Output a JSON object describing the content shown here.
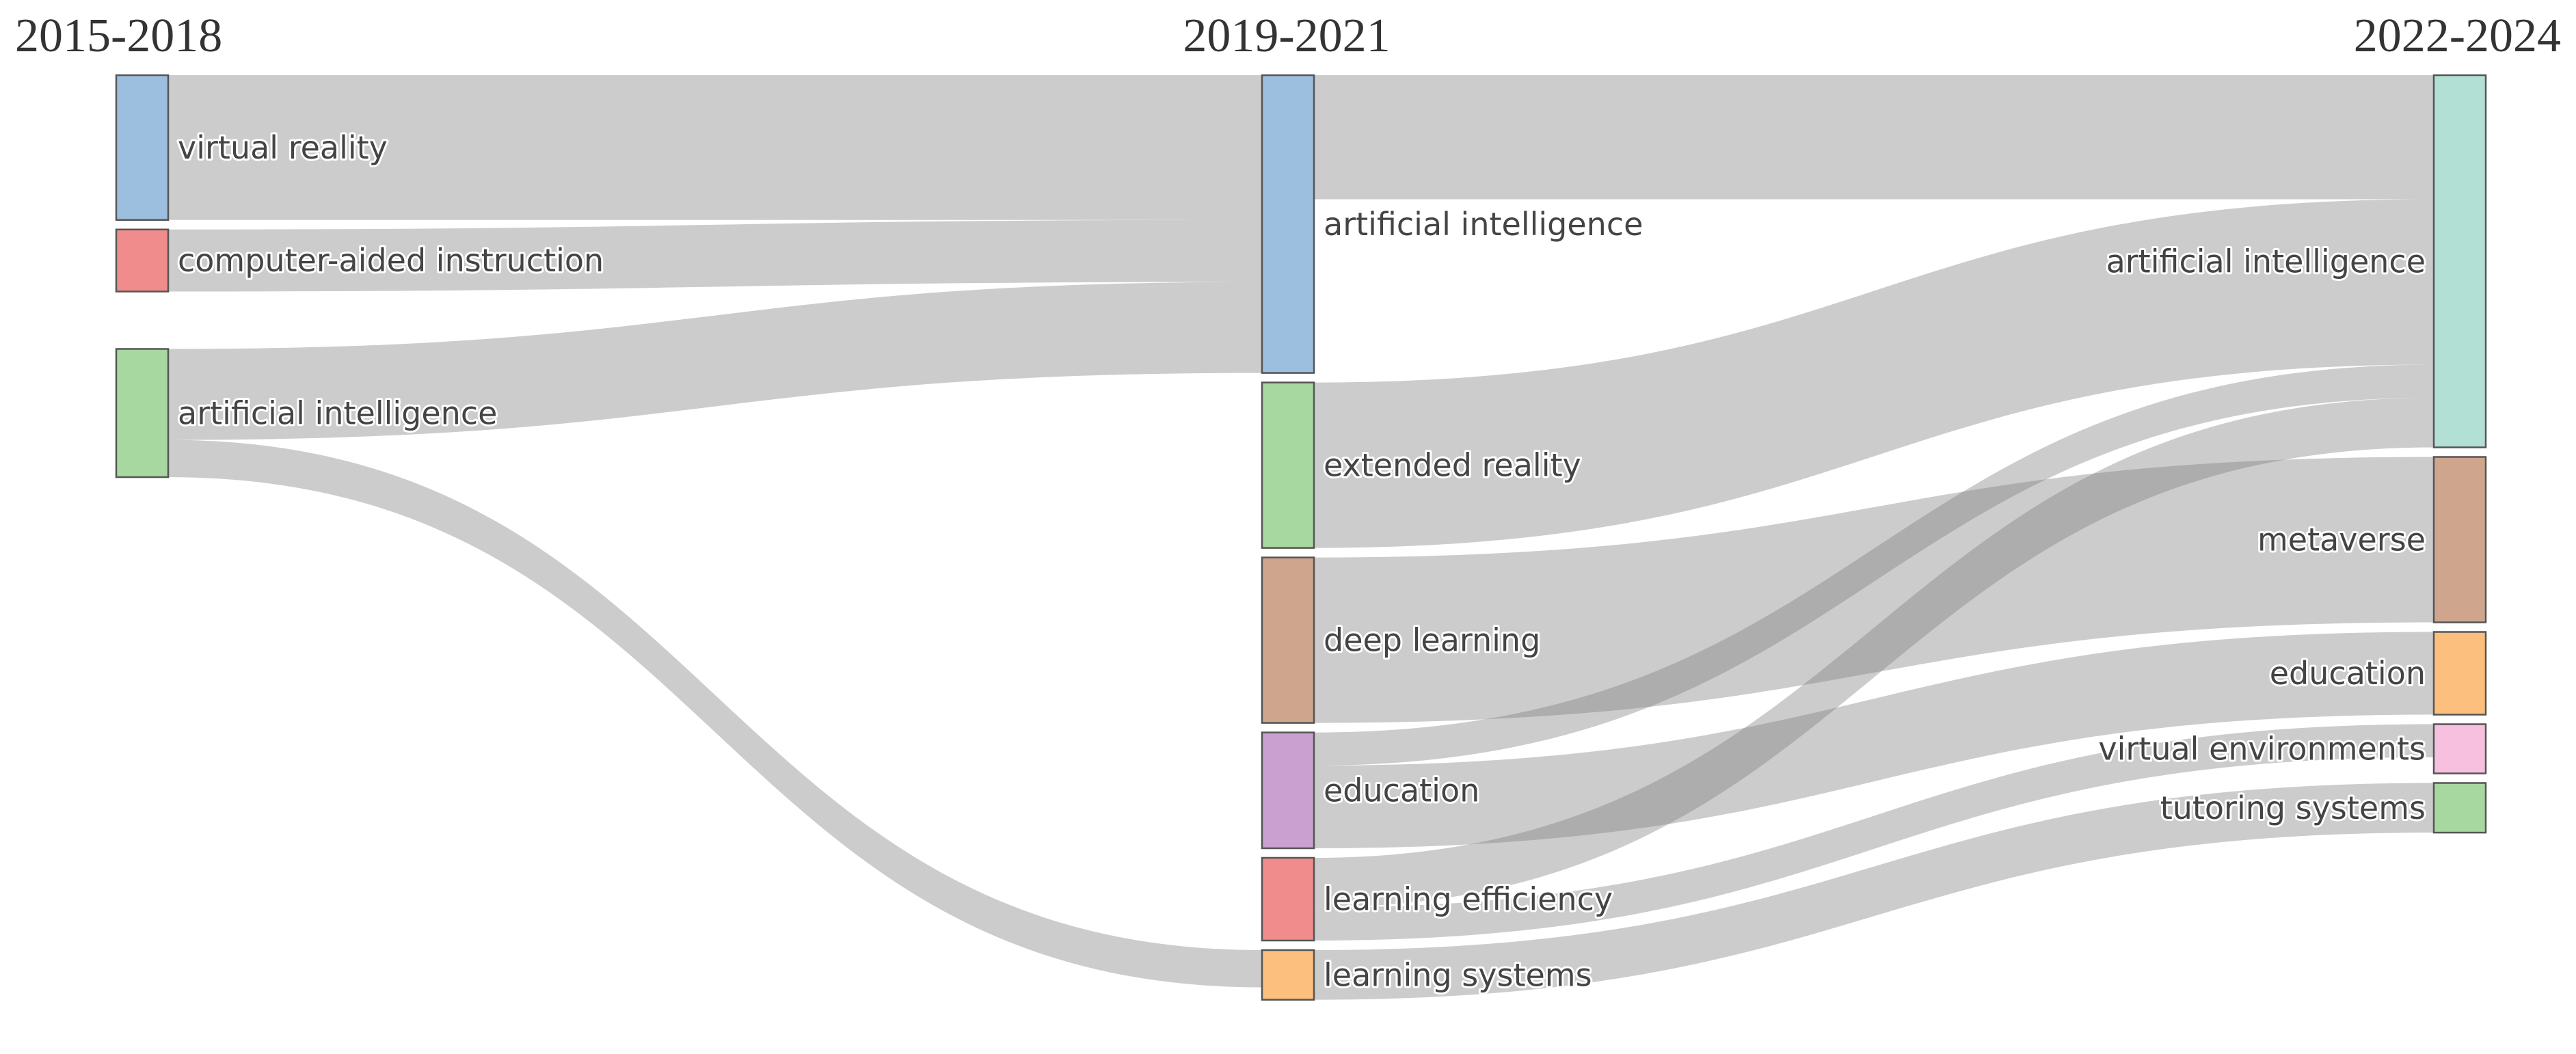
{
  "chart_data": {
    "type": "sankey",
    "columns": [
      "2015-2018",
      "2019-2021",
      "2022-2024"
    ],
    "nodes": [
      {
        "id": "a1",
        "column": 0,
        "label": "virtual reality",
        "color": "#9dbfdf"
      },
      {
        "id": "a2",
        "column": 0,
        "label": "computer-aided instruction",
        "color": "#f08c8c"
      },
      {
        "id": "a3",
        "column": 0,
        "label": "artificial intelligence",
        "color": "#a6d8a0"
      },
      {
        "id": "b1",
        "column": 1,
        "label": "artificial intelligence",
        "color": "#9dbfdf"
      },
      {
        "id": "b2",
        "column": 1,
        "label": "extended reality",
        "color": "#a6d8a0"
      },
      {
        "id": "b3",
        "column": 1,
        "label": "deep learning",
        "color": "#cfa58e"
      },
      {
        "id": "b4",
        "column": 1,
        "label": "education",
        "color": "#c9a0d0"
      },
      {
        "id": "b5",
        "column": 1,
        "label": "learning efficiency",
        "color": "#f08c8c"
      },
      {
        "id": "b6",
        "column": 1,
        "label": "learning systems",
        "color": "#fcbf7d"
      },
      {
        "id": "c1",
        "column": 2,
        "label": "artificial intelligence",
        "color": "#b2e0d4"
      },
      {
        "id": "c2",
        "column": 2,
        "label": "metaverse",
        "color": "#cfa58e"
      },
      {
        "id": "c3",
        "column": 2,
        "label": "education",
        "color": "#fcbf7d"
      },
      {
        "id": "c4",
        "column": 2,
        "label": "virtual environments",
        "color": "#f7c0df"
      },
      {
        "id": "c5",
        "column": 2,
        "label": "tutoring systems",
        "color": "#a6d8a0"
      }
    ],
    "links": [
      {
        "source": "a1",
        "target": "b1",
        "value": 35
      },
      {
        "source": "a2",
        "target": "b1",
        "value": 15
      },
      {
        "source": "a3",
        "target": "b1",
        "value": 22
      },
      {
        "source": "a3",
        "target": "b6",
        "value": 9
      },
      {
        "source": "b1",
        "target": "c1",
        "value": 30
      },
      {
        "source": "b2",
        "target": "c1",
        "value": 40
      },
      {
        "source": "b3",
        "target": "c2",
        "value": 40
      },
      {
        "source": "b4",
        "target": "c1",
        "value": 8
      },
      {
        "source": "b4",
        "target": "c3",
        "value": 20
      },
      {
        "source": "b5",
        "target": "c1",
        "value": 12
      },
      {
        "source": "b5",
        "target": "c4",
        "value": 8
      },
      {
        "source": "b6",
        "target": "c5",
        "value": 12
      }
    ]
  }
}
